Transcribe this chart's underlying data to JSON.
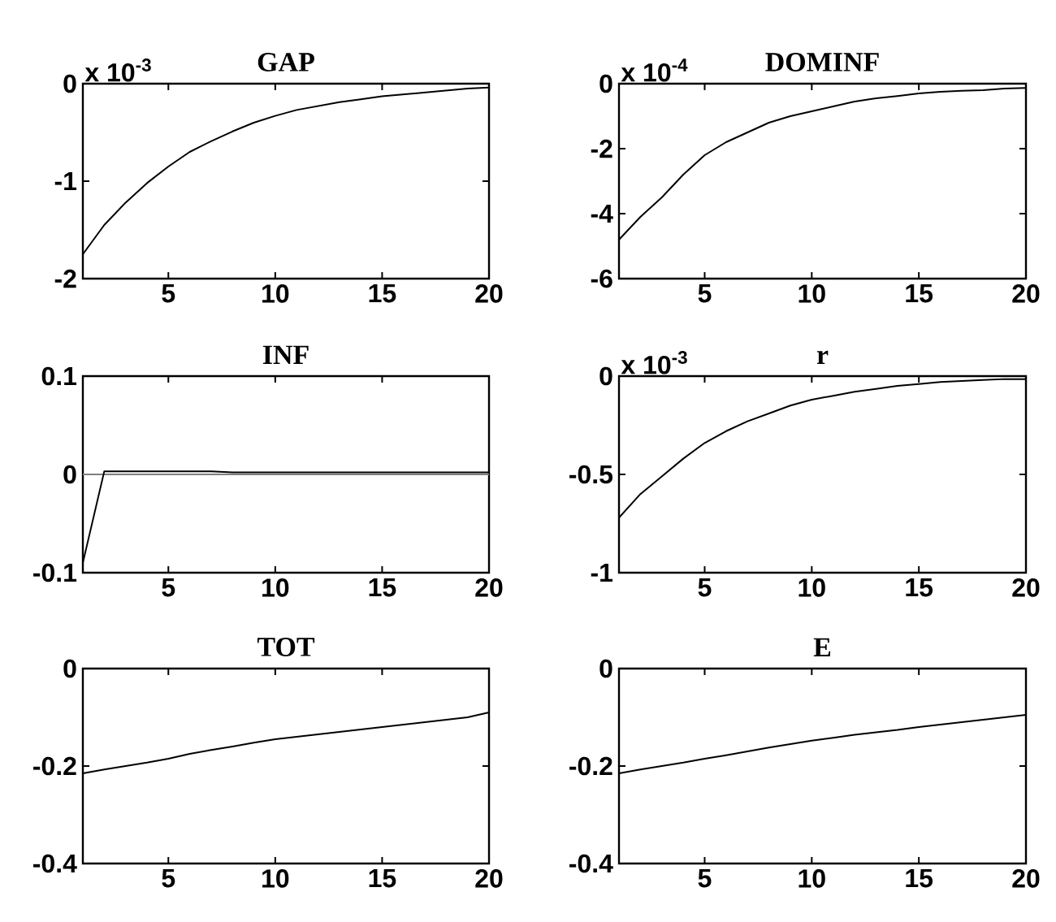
{
  "chart_data": [
    {
      "type": "line",
      "title": "GAP",
      "annotations": [
        "x 10$^{-3}$"
      ],
      "x": [
        1,
        2,
        3,
        4,
        5,
        6,
        7,
        8,
        9,
        10,
        11,
        12,
        13,
        14,
        15,
        16,
        17,
        18,
        19,
        20
      ],
      "values": [
        -1.75,
        -1.45,
        -1.22,
        -1.02,
        -0.85,
        -0.7,
        -0.59,
        -0.49,
        -0.4,
        -0.33,
        -0.27,
        -0.23,
        -0.19,
        -0.16,
        -0.13,
        -0.11,
        -0.09,
        -0.07,
        -0.05,
        -0.04
      ],
      "color": "#000000",
      "xlim": [
        1,
        20
      ],
      "xticks": [
        5,
        10,
        15,
        20
      ],
      "ylim": [
        -2,
        0
      ],
      "yticks": [
        -2,
        -1,
        0
      ]
    },
    {
      "type": "line",
      "title": "DOMINF",
      "annotations": [
        "x 10$^{-4}$"
      ],
      "x": [
        1,
        2,
        3,
        4,
        5,
        6,
        7,
        8,
        9,
        10,
        11,
        12,
        13,
        14,
        15,
        16,
        17,
        18,
        19,
        20
      ],
      "values": [
        -4.8,
        -4.1,
        -3.5,
        -2.8,
        -2.2,
        -1.8,
        -1.5,
        -1.2,
        -1.0,
        -0.85,
        -0.7,
        -0.55,
        -0.45,
        -0.38,
        -0.3,
        -0.25,
        -0.22,
        -0.2,
        -0.15,
        -0.13
      ],
      "color": "#000000",
      "xlim": [
        1,
        20
      ],
      "xticks": [
        5,
        10,
        15,
        20
      ],
      "ylim": [
        -6,
        0
      ],
      "yticks": [
        -6,
        -4,
        -2,
        0
      ]
    },
    {
      "type": "line",
      "title": "INF",
      "x": [
        1,
        2,
        3,
        4,
        5,
        6,
        7,
        8,
        9,
        10,
        11,
        12,
        13,
        14,
        15,
        16,
        17,
        18,
        19,
        20
      ],
      "values": [
        -0.09,
        0.003,
        0.003,
        0.003,
        0.003,
        0.003,
        0.003,
        0.002,
        0.002,
        0.002,
        0.002,
        0.002,
        0.002,
        0.002,
        0.002,
        0.002,
        0.002,
        0.002,
        0.002,
        0.002
      ],
      "color": "#000000",
      "xlim": [
        1,
        20
      ],
      "xticks": [
        5,
        10,
        15,
        20
      ],
      "ylim": [
        -0.1,
        0.1
      ],
      "yticks": [
        -0.1,
        0,
        0.1
      ],
      "ref_lines": [
        {
          "axis": "y",
          "value": 0,
          "color": "#808080"
        }
      ]
    },
    {
      "type": "line",
      "title": "r",
      "annotations": [
        "x 10$^{-3}$"
      ],
      "x": [
        1,
        2,
        3,
        4,
        5,
        6,
        7,
        8,
        9,
        10,
        11,
        12,
        13,
        14,
        15,
        16,
        17,
        18,
        19,
        20
      ],
      "values": [
        -0.72,
        -0.6,
        -0.51,
        -0.42,
        -0.34,
        -0.28,
        -0.23,
        -0.19,
        -0.15,
        -0.12,
        -0.1,
        -0.08,
        -0.065,
        -0.05,
        -0.04,
        -0.03,
        -0.025,
        -0.02,
        -0.015,
        -0.015
      ],
      "color": "#000000",
      "xlim": [
        1,
        20
      ],
      "xticks": [
        5,
        10,
        15,
        20
      ],
      "ylim": [
        -1,
        0
      ],
      "yticks": [
        -1,
        -0.5,
        0
      ]
    },
    {
      "type": "line",
      "title": "TOT",
      "x": [
        1,
        2,
        3,
        4,
        5,
        6,
        7,
        8,
        9,
        10,
        11,
        12,
        13,
        14,
        15,
        16,
        17,
        18,
        19,
        20
      ],
      "values": [
        -0.215,
        -0.207,
        -0.2,
        -0.193,
        -0.185,
        -0.175,
        -0.167,
        -0.16,
        -0.152,
        -0.145,
        -0.14,
        -0.135,
        -0.13,
        -0.125,
        -0.12,
        -0.115,
        -0.11,
        -0.105,
        -0.1,
        -0.09
      ],
      "color": "#000000",
      "xlim": [
        1,
        20
      ],
      "xticks": [
        5,
        10,
        15,
        20
      ],
      "ylim": [
        -0.4,
        0
      ],
      "yticks": [
        -0.4,
        -0.2,
        0
      ]
    },
    {
      "type": "line",
      "title": "E",
      "x": [
        1,
        2,
        3,
        4,
        5,
        6,
        7,
        8,
        9,
        10,
        11,
        12,
        13,
        14,
        15,
        16,
        17,
        18,
        19,
        20
      ],
      "values": [
        -0.215,
        -0.207,
        -0.2,
        -0.193,
        -0.185,
        -0.178,
        -0.17,
        -0.162,
        -0.155,
        -0.148,
        -0.142,
        -0.136,
        -0.131,
        -0.126,
        -0.12,
        -0.115,
        -0.11,
        -0.105,
        -0.1,
        -0.095
      ],
      "color": "#000000",
      "xlim": [
        1,
        20
      ],
      "xticks": [
        5,
        10,
        15,
        20
      ],
      "ylim": [
        -0.4,
        0
      ],
      "yticks": [
        -0.4,
        -0.2,
        0
      ]
    }
  ]
}
